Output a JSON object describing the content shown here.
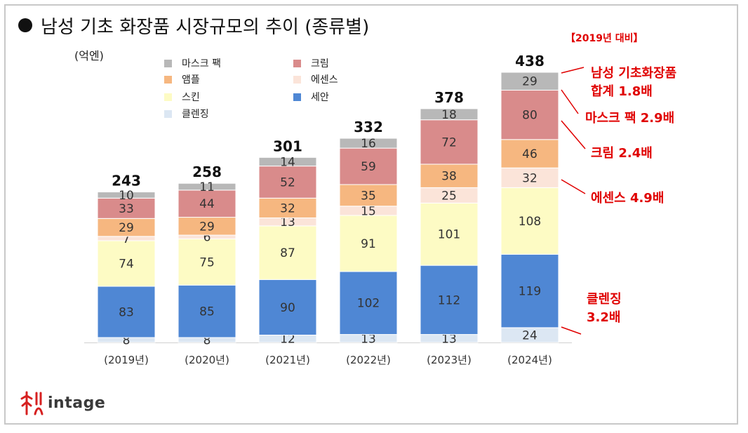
{
  "title": "남성 기초 화장품  시장규모의 추이 (종류별)",
  "unit_label": "(억엔)",
  "compare_title": "【2019년 대비】",
  "annotations": {
    "total_line1": "남성 기초화장품",
    "total_line2": "합계 1.8배",
    "mask": "마스크 팩 2.9배",
    "cream": "크림 2.4배",
    "essence": "에센스 4.9배",
    "cleansing_line1": "클렌징",
    "cleansing_line2": "3.2배"
  },
  "logo_text": "intage",
  "legend": [
    {
      "name": "마스크 팩",
      "color": "#b8b8b8"
    },
    {
      "name": "크림",
      "color": "#d98b8b"
    },
    {
      "name": "앰플",
      "color": "#f6b780"
    },
    {
      "name": "에센스",
      "color": "#fbe4d9"
    },
    {
      "name": "스킨",
      "color": "#fdfbc4"
    },
    {
      "name": "세안",
      "color": "#4f87d4"
    },
    {
      "name": "클렌징",
      "color": "#dce7f3"
    }
  ],
  "chart_data": {
    "type": "bar",
    "stacked": true,
    "categories": [
      "(2019년)",
      "(2020년)",
      "(2021년)",
      "(2022년)",
      "(2023년)",
      "(2024년)"
    ],
    "totals": [
      243,
      258,
      301,
      332,
      378,
      438
    ],
    "series": [
      {
        "name": "클렌징",
        "color": "#dce7f3",
        "values": [
          8,
          8,
          12,
          13,
          13,
          24
        ]
      },
      {
        "name": "세안",
        "color": "#4f87d4",
        "values": [
          83,
          85,
          90,
          102,
          112,
          119
        ]
      },
      {
        "name": "스킨",
        "color": "#fdfbc4",
        "values": [
          74,
          75,
          87,
          91,
          101,
          108
        ]
      },
      {
        "name": "에센스",
        "color": "#fbe4d9",
        "values": [
          7,
          6,
          13,
          15,
          25,
          32
        ]
      },
      {
        "name": "앰플",
        "color": "#f6b780",
        "values": [
          29,
          29,
          32,
          35,
          38,
          46
        ]
      },
      {
        "name": "크림",
        "color": "#d98b8b",
        "values": [
          33,
          44,
          52,
          59,
          72,
          80
        ]
      },
      {
        "name": "마스크 팩",
        "color": "#b8b8b8",
        "values": [
          10,
          11,
          14,
          16,
          18,
          29
        ]
      }
    ],
    "ylim": [
      0,
      438
    ],
    "grid": false,
    "legend_position": "top-left"
  }
}
